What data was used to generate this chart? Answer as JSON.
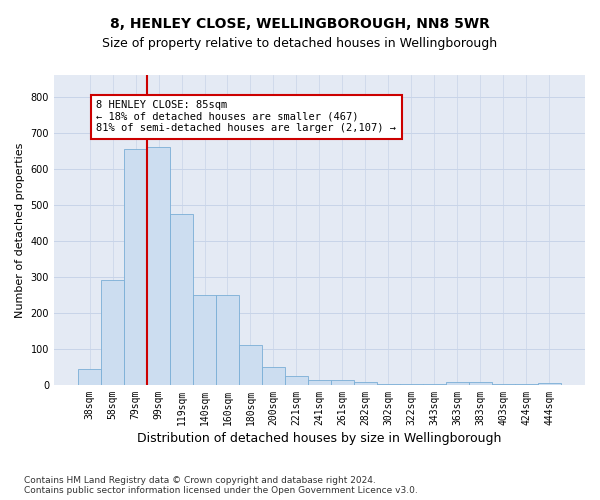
{
  "title": "8, HENLEY CLOSE, WELLINGBOROUGH, NN8 5WR",
  "subtitle": "Size of property relative to detached houses in Wellingborough",
  "xlabel": "Distribution of detached houses by size in Wellingborough",
  "ylabel": "Number of detached properties",
  "bar_labels": [
    "38sqm",
    "58sqm",
    "79sqm",
    "99sqm",
    "119sqm",
    "140sqm",
    "160sqm",
    "180sqm",
    "200sqm",
    "221sqm",
    "241sqm",
    "261sqm",
    "282sqm",
    "302sqm",
    "322sqm",
    "343sqm",
    "363sqm",
    "383sqm",
    "403sqm",
    "424sqm",
    "444sqm"
  ],
  "bar_values": [
    45,
    290,
    655,
    660,
    475,
    250,
    250,
    110,
    50,
    25,
    15,
    15,
    7,
    3,
    3,
    3,
    7,
    7,
    3,
    3,
    5
  ],
  "bar_color": "#ccddf0",
  "bar_edgecolor": "#7aaed6",
  "marker_index": 2,
  "marker_color": "#cc0000",
  "annotation_text": "8 HENLEY CLOSE: 85sqm\n← 18% of detached houses are smaller (467)\n81% of semi-detached houses are larger (2,107) →",
  "annotation_box_edgecolor": "#cc0000",
  "annotation_box_facecolor": "#ffffff",
  "ylim": [
    0,
    860
  ],
  "yticks": [
    0,
    100,
    200,
    300,
    400,
    500,
    600,
    700,
    800
  ],
  "grid_color": "#c8d4e8",
  "background_color": "#e4eaf4",
  "footnote": "Contains HM Land Registry data © Crown copyright and database right 2024.\nContains public sector information licensed under the Open Government Licence v3.0.",
  "title_fontsize": 10,
  "subtitle_fontsize": 9,
  "xlabel_fontsize": 9,
  "ylabel_fontsize": 8,
  "tick_fontsize": 7,
  "annotation_fontsize": 7.5,
  "footnote_fontsize": 6.5
}
